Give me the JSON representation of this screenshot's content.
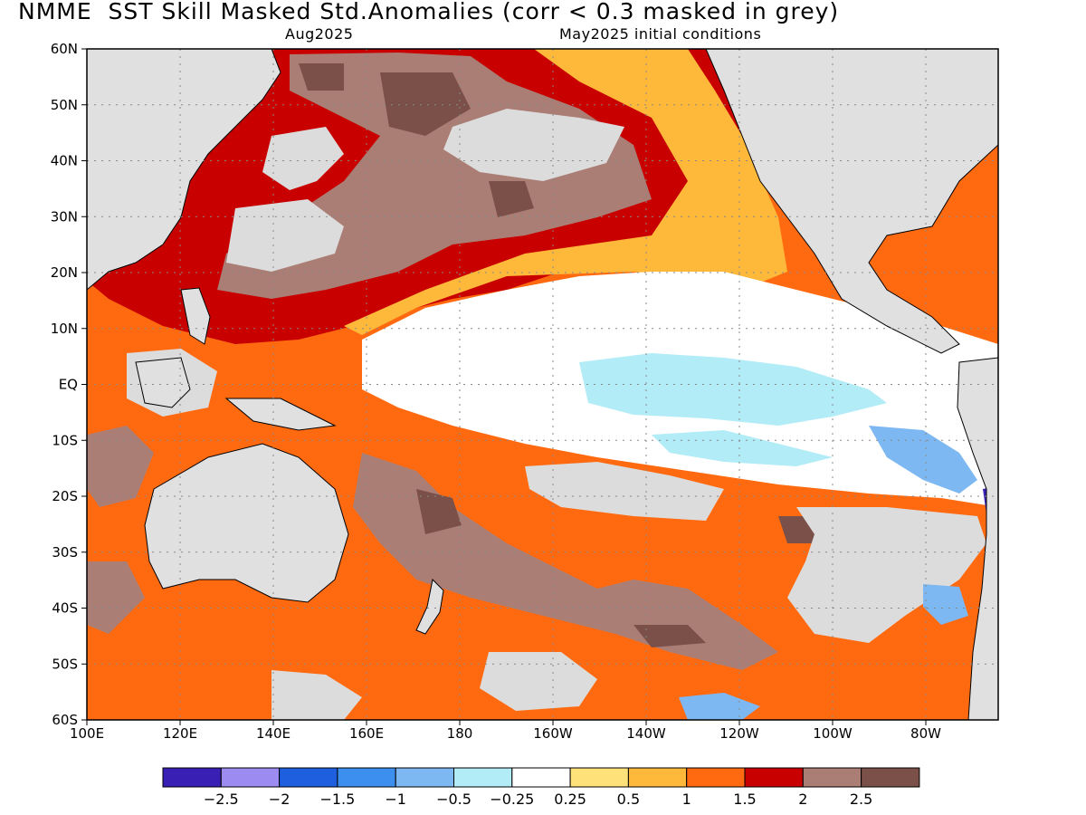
{
  "title": "NMME  SST Skill Masked Std.Anomalies (corr < 0.3 masked in grey)",
  "subtitle_left": "Aug2025",
  "subtitle_right": "May2025 initial conditions",
  "lat_labels": [
    "60N",
    "50N",
    "40N",
    "30N",
    "20N",
    "10N",
    "EQ",
    "10S",
    "20S",
    "30S",
    "40S",
    "50S",
    "60S"
  ],
  "lon_labels": [
    "100E",
    "120E",
    "140E",
    "160E",
    "180",
    "160W",
    "140W",
    "120W",
    "100W",
    "80W"
  ],
  "colorbar": {
    "colors": [
      "#3a1fb5",
      "#9c8cf2",
      "#1e5fe0",
      "#3d8fef",
      "#7eb8f2",
      "#b1ecf7",
      "#ffffff",
      "#ffe17a",
      "#ffb93a",
      "#ff6a10",
      "#c80000",
      "#aa7d75",
      "#7a5048"
    ],
    "labels": [
      "−2.5",
      "−2",
      "−1.5",
      "−1",
      "−0.5",
      "−0.25",
      "0.25",
      "0.5",
      "1",
      "1.5",
      "2",
      "2.5"
    ]
  },
  "colors": {
    "land": "#e0e0e0",
    "mask": "#dcdcdc",
    "white": "#ffffff"
  }
}
